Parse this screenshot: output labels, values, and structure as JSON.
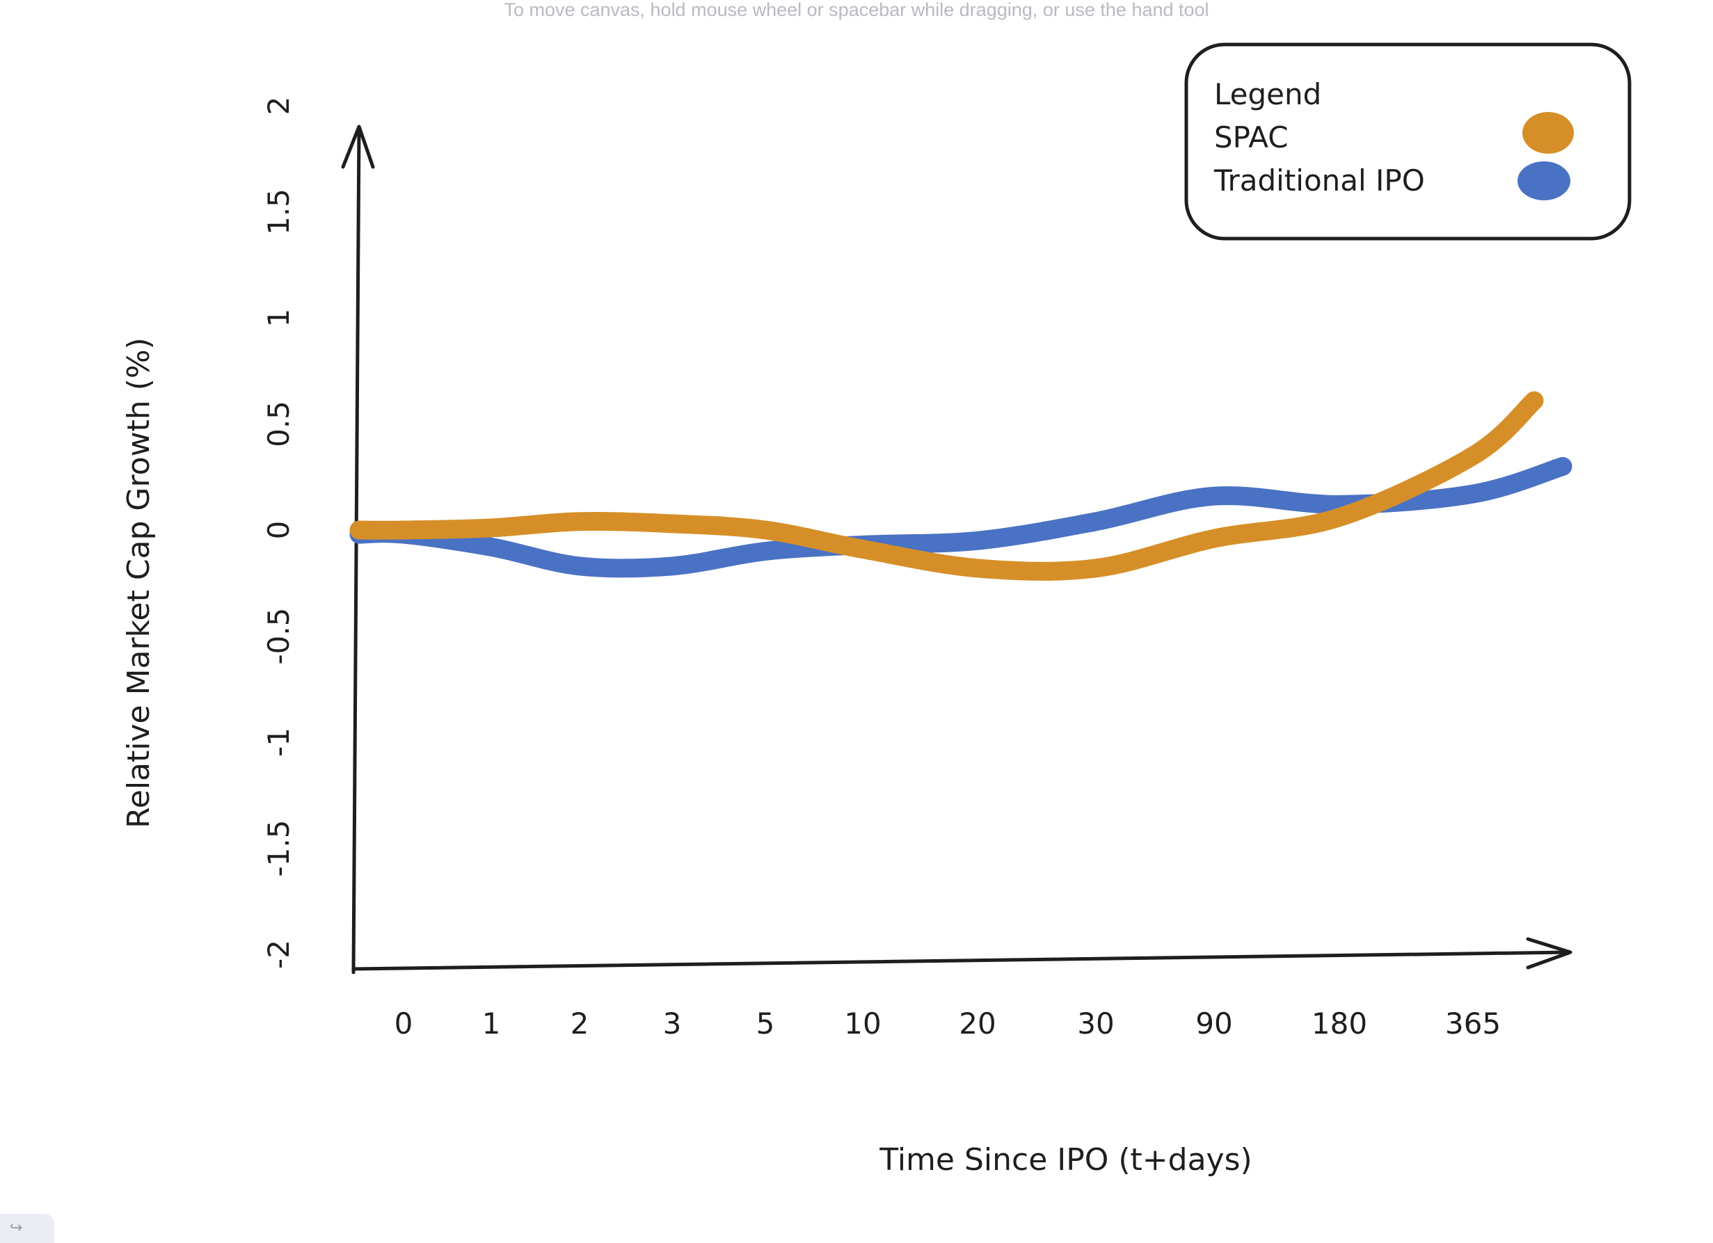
{
  "canvas_hint": "To move canvas, hold mouse wheel or spacebar while dragging, or use the hand tool",
  "corner_button_icon": "redo-arrow-icon",
  "chart_data": {
    "type": "line",
    "title": "",
    "xlabel": "Time Since IPO (t+days)",
    "ylabel": "Relative Market Cap Growth (%)",
    "categories": [
      "0",
      "1",
      "2",
      "3",
      "5",
      "10",
      "20",
      "30",
      "90",
      "180",
      "365"
    ],
    "ylim": [
      -2,
      2
    ],
    "yticks": [
      "-2",
      "-1.5",
      "-1",
      "-0.5",
      "0",
      "0.5",
      "1",
      "1.5",
      "2"
    ],
    "grid": false,
    "legend_position": "top-right",
    "legend_title": "Legend",
    "series": [
      {
        "name": "SPAC",
        "color": "#d68f28",
        "values": [
          0.0,
          0.01,
          0.04,
          0.03,
          0.0,
          -0.09,
          -0.18,
          -0.18,
          -0.04,
          0.06,
          0.35
        ],
        "end_value": 0.61
      },
      {
        "name": "Traditional IPO",
        "color": "#4a72c4",
        "values": [
          -0.02,
          -0.08,
          -0.17,
          -0.17,
          -0.1,
          -0.07,
          -0.05,
          0.04,
          0.16,
          0.12,
          0.17
        ],
        "end_value": 0.3
      }
    ]
  }
}
